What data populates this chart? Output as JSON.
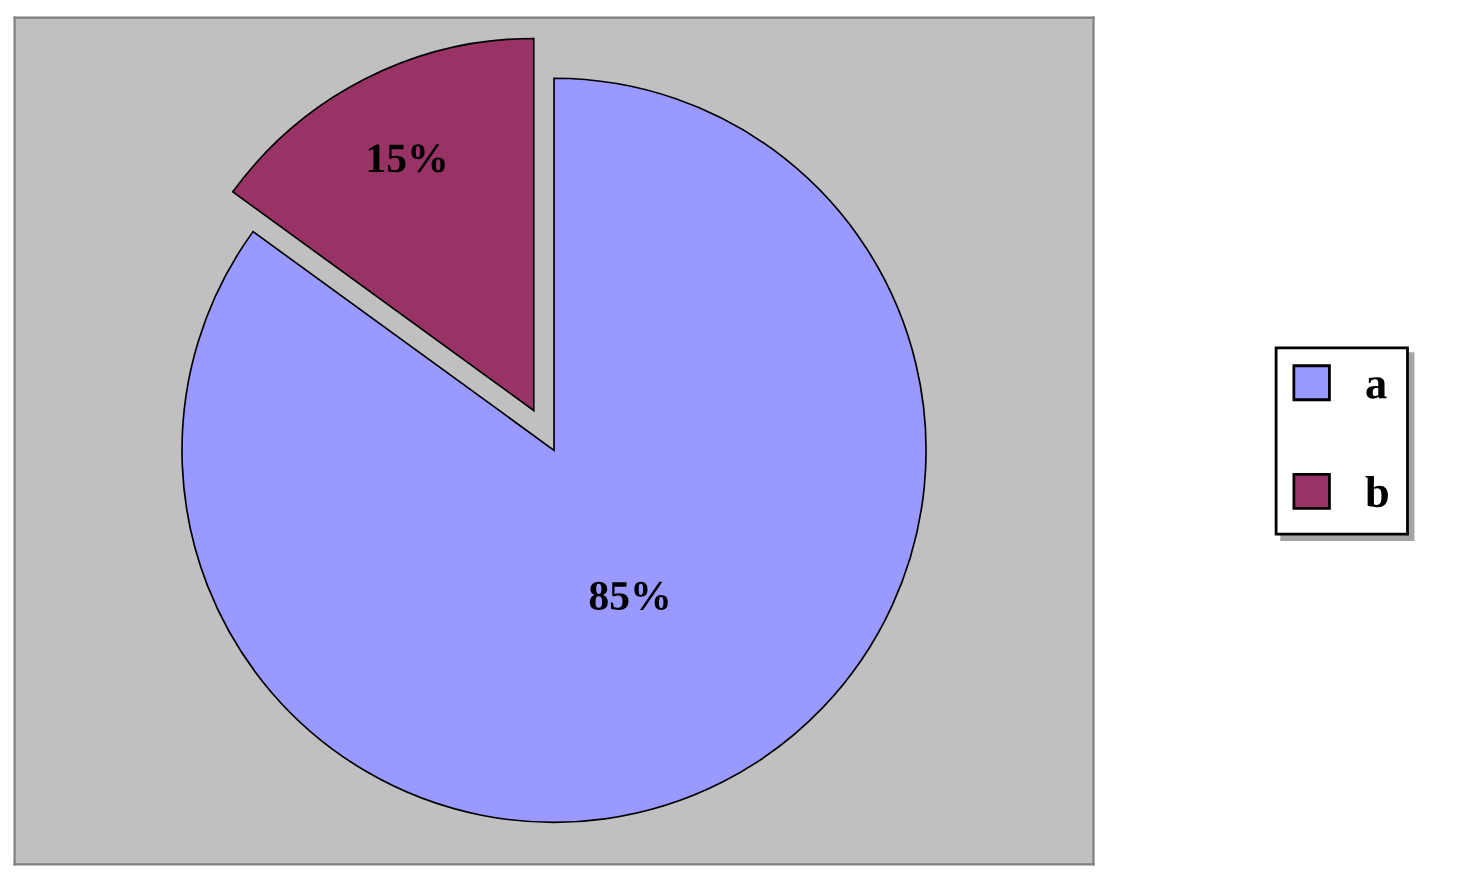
{
  "chart_data": {
    "type": "pie",
    "categories": [
      "a",
      "b"
    ],
    "values": [
      85,
      15
    ],
    "colors": [
      "#9999ff",
      "#993366"
    ],
    "value_labels": [
      "85%",
      "15%"
    ],
    "legend": "right"
  }
}
